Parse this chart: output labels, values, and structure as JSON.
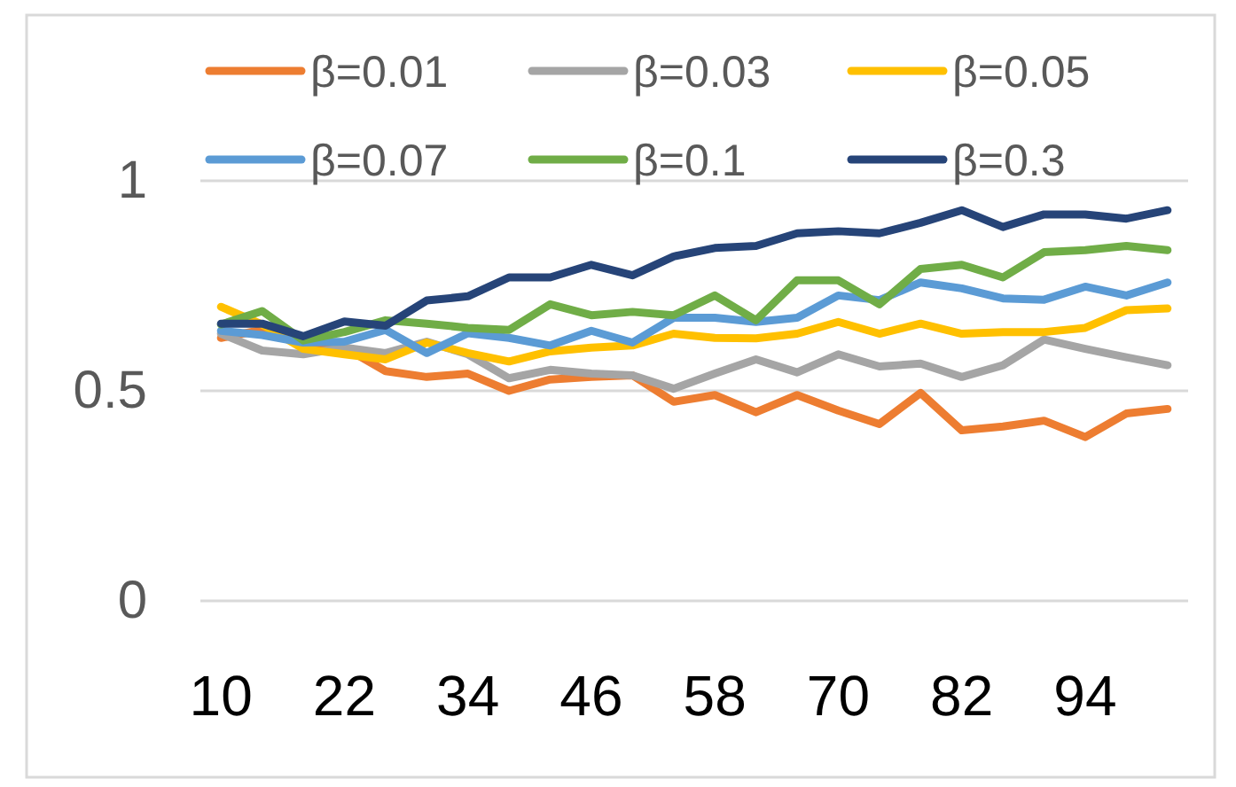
{
  "chart_data": {
    "type": "line",
    "categories": [
      "10",
      null,
      null,
      "22",
      null,
      null,
      "34",
      null,
      null,
      "46",
      null,
      null,
      "58",
      null,
      null,
      "70",
      null,
      null,
      "82",
      null,
      null,
      "94",
      null,
      null
    ],
    "ylim": [
      0,
      1
    ],
    "yticks": [
      0,
      0.5,
      1
    ],
    "grid": "y",
    "legend": "top",
    "line_style": "solid",
    "marker": "none",
    "series": [
      {
        "name": "β=0.01",
        "color": "#ed7d31",
        "values": [
          0.626,
          0.645,
          0.615,
          0.603,
          0.547,
          0.533,
          0.541,
          0.5,
          0.527,
          0.533,
          0.537,
          0.474,
          0.49,
          0.449,
          0.49,
          0.453,
          0.421,
          0.495,
          0.406,
          0.415,
          0.429,
          0.39,
          0.446,
          0.457
        ]
      },
      {
        "name": "β=0.03",
        "color": "#a5a5a5",
        "values": [
          0.636,
          0.596,
          0.587,
          0.603,
          0.59,
          0.617,
          0.587,
          0.53,
          0.55,
          0.541,
          0.537,
          0.505,
          0.541,
          0.575,
          0.544,
          0.587,
          0.558,
          0.565,
          0.533,
          0.561,
          0.622,
          0.6,
          0.58,
          0.561
        ]
      },
      {
        "name": "β=0.05",
        "color": "#ffc000",
        "values": [
          0.7,
          0.658,
          0.6,
          0.587,
          0.575,
          0.615,
          0.59,
          0.57,
          0.594,
          0.603,
          0.608,
          0.636,
          0.626,
          0.625,
          0.636,
          0.664,
          0.636,
          0.66,
          0.636,
          0.64,
          0.64,
          0.65,
          0.692,
          0.696
        ]
      },
      {
        "name": "β=0.07",
        "color": "#5b9bd5",
        "values": [
          0.643,
          0.633,
          0.615,
          0.617,
          0.645,
          0.59,
          0.637,
          0.626,
          0.608,
          0.643,
          0.615,
          0.674,
          0.674,
          0.664,
          0.674,
          0.727,
          0.716,
          0.758,
          0.744,
          0.72,
          0.717,
          0.748,
          0.727,
          0.758
        ]
      },
      {
        "name": "β=0.1",
        "color": "#70ad47",
        "values": [
          0.658,
          0.69,
          0.62,
          0.64,
          0.668,
          0.66,
          0.65,
          0.645,
          0.706,
          0.68,
          0.688,
          0.68,
          0.727,
          0.668,
          0.763,
          0.763,
          0.706,
          0.79,
          0.8,
          0.77,
          0.83,
          0.835,
          0.845,
          0.835
        ]
      },
      {
        "name": "β=0.3",
        "color": "#264478",
        "values": [
          0.66,
          0.66,
          0.63,
          0.665,
          0.655,
          0.715,
          0.725,
          0.77,
          0.77,
          0.8,
          0.775,
          0.82,
          0.84,
          0.845,
          0.875,
          0.88,
          0.875,
          0.9,
          0.93,
          0.89,
          0.92,
          0.92,
          0.91,
          0.93
        ]
      }
    ]
  }
}
